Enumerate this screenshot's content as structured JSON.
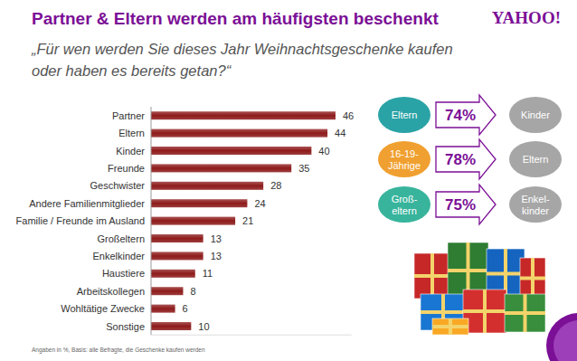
{
  "chart_data": {
    "type": "bar",
    "orientation": "horizontal",
    "title": "Partner & Eltern werden am häufigsten beschenkt",
    "subtitle": "„Für wen werden Sie dieses Jahr Weihnachtsgeschenke kaufen oder haben es bereits getan?“",
    "categories": [
      "Partner",
      "Eltern",
      "Kinder",
      "Freunde",
      "Geschwister",
      "Andere Familienmitglieder",
      "Familie / Freunde im Ausland",
      "Großeltern",
      "Enkelkinder",
      "Haustiere",
      "Arbeitskollegen",
      "Wohltätige Zwecke",
      "Sonstige"
    ],
    "values": [
      46,
      44,
      40,
      35,
      28,
      24,
      21,
      13,
      13,
      11,
      8,
      6,
      10
    ],
    "color": "#8e1b1b",
    "xlim": [
      0,
      50
    ],
    "data_labels": true,
    "tick_labels": "y",
    "grid": false,
    "annotations": [
      {
        "from": "Eltern",
        "value": 74,
        "label": "74%",
        "to": "Kinder"
      },
      {
        "from": "16-19-\nJährige",
        "value": 78,
        "label": "78%",
        "to": "Eltern"
      },
      {
        "from": "Groß-\neltern",
        "value": 75,
        "label": "75%",
        "to": "Enkel-\nkinder"
      }
    ],
    "footnote": "Angaben in %, Basis: alle Befragte, die Geschenke kaufen werden",
    "logo": "YAHOO!"
  }
}
